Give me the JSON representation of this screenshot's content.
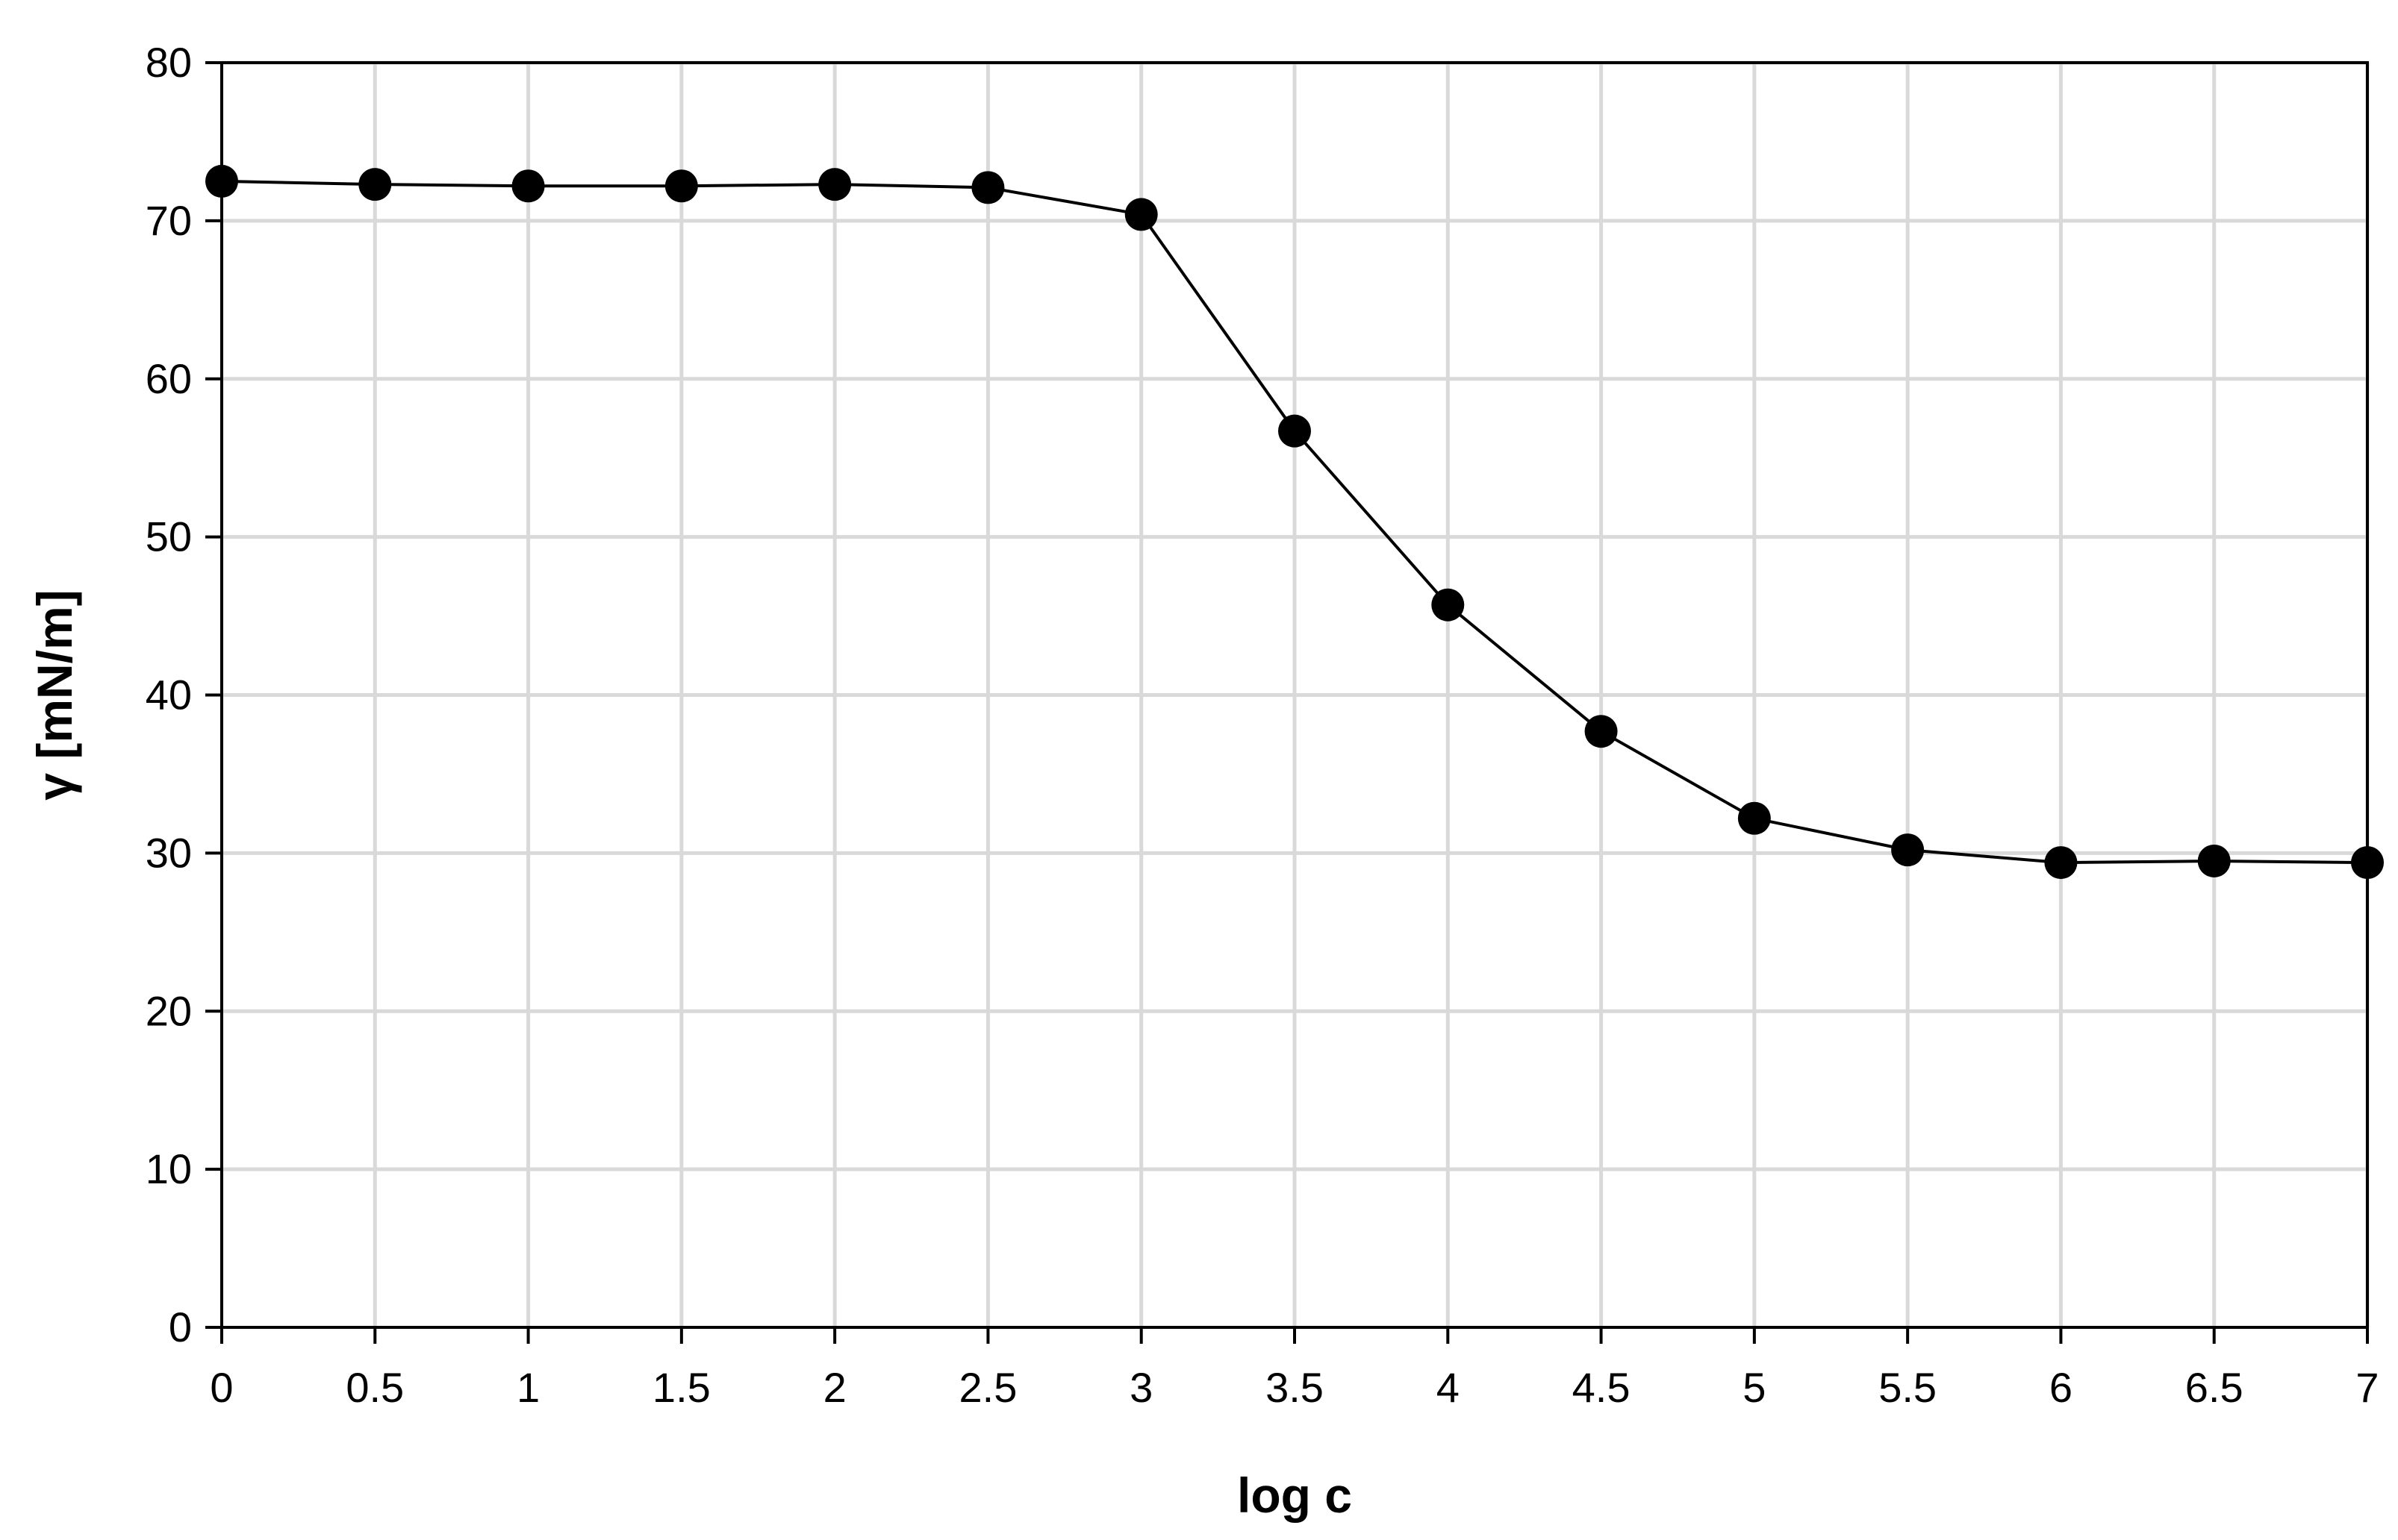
{
  "chart_data": {
    "type": "line",
    "title": "",
    "xlabel": "log c",
    "ylabel": "γ [mN/m]",
    "xlim": [
      0,
      7
    ],
    "ylim": [
      0,
      80
    ],
    "x_ticks": [
      "0",
      "0.5",
      "1",
      "1.5",
      "2",
      "2.5",
      "3",
      "3.5",
      "4",
      "4.5",
      "5",
      "5.5",
      "6",
      "6.5",
      "7"
    ],
    "y_ticks": [
      "0",
      "10",
      "20",
      "30",
      "40",
      "50",
      "60",
      "70",
      "80"
    ],
    "grid": true,
    "legend": "none",
    "series": [
      {
        "x": [
          0,
          0.5,
          1,
          1.5,
          2,
          2.5,
          3,
          3.5,
          4,
          4.5,
          5,
          5.5,
          6,
          6.5,
          7
        ],
        "y": [
          72.5,
          72.3,
          72.2,
          72.2,
          72.3,
          72.1,
          70.4,
          56.7,
          45.7,
          37.7,
          32.2,
          30.2,
          29.4,
          29.5,
          29.4
        ]
      }
    ],
    "colors": {
      "line": "#000000",
      "marker": "#000000",
      "grid": "#d9d9d9",
      "axis": "#000000"
    }
  }
}
